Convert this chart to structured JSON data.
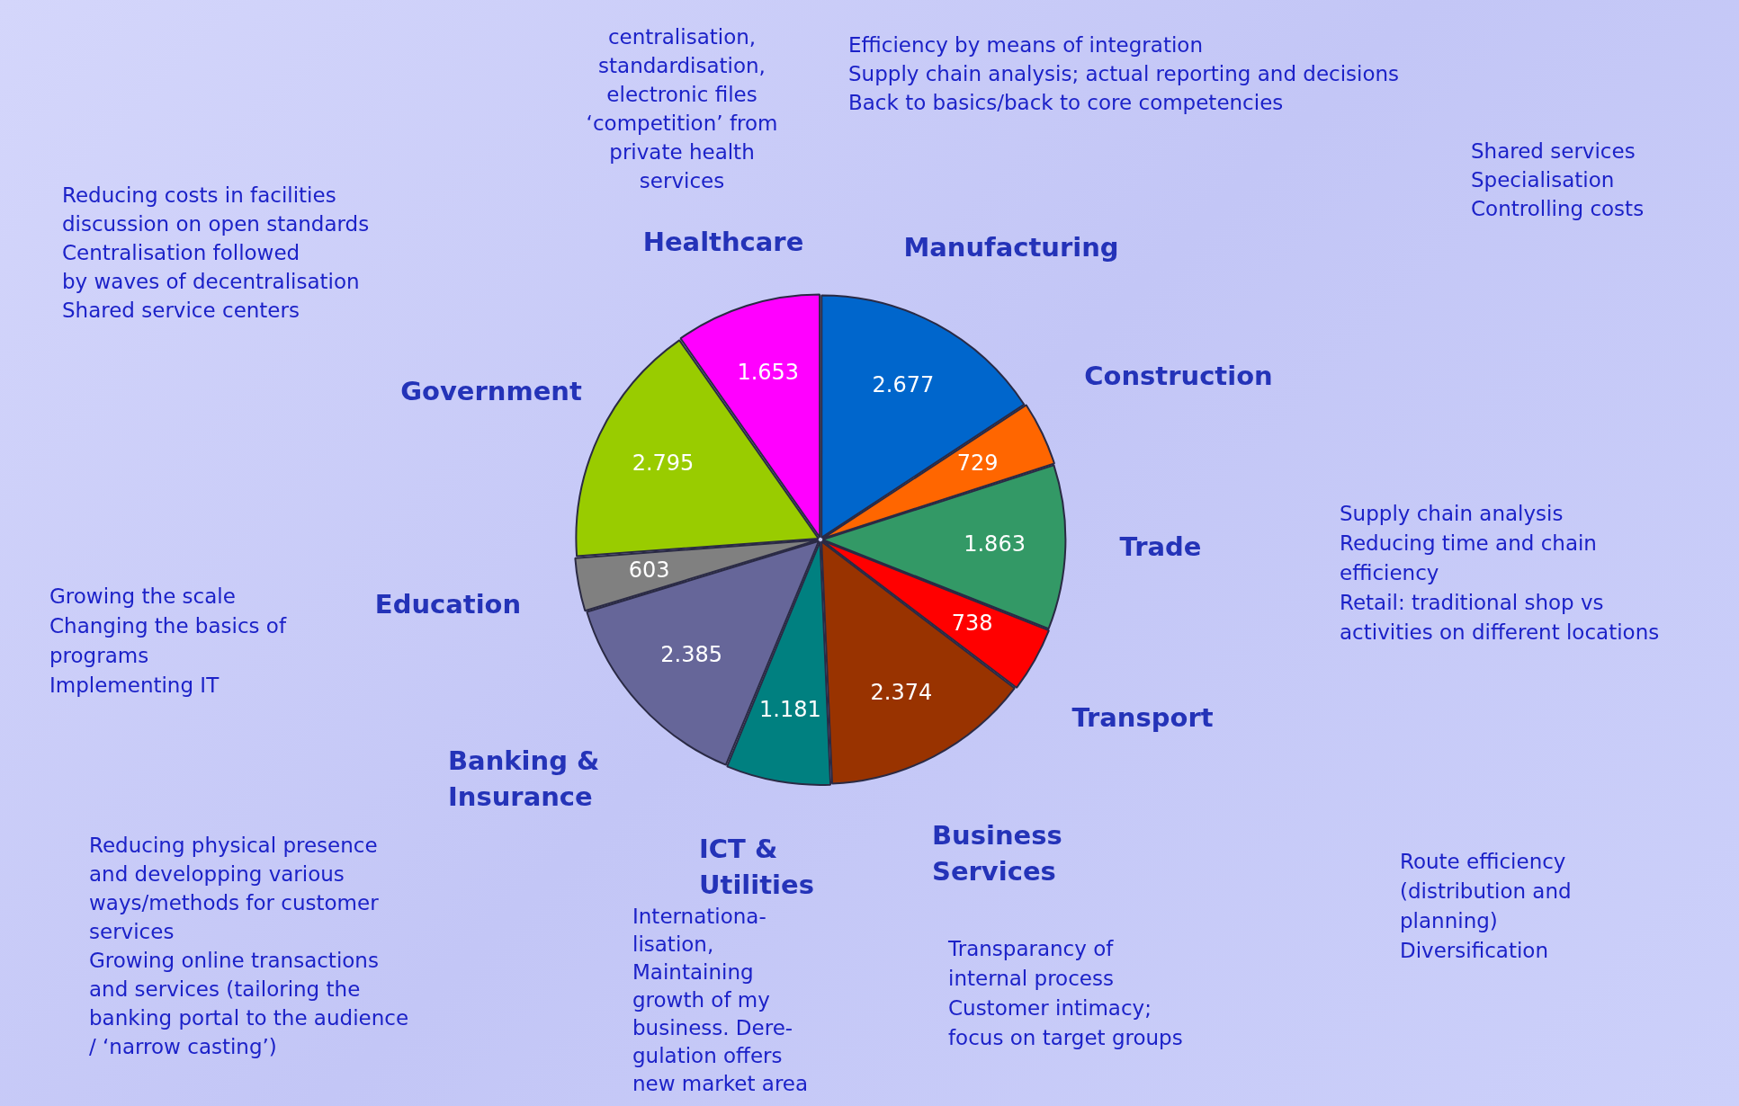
{
  "chart_data": {
    "type": "pie",
    "categories": [
      "Manufacturing",
      "Construction",
      "Trade",
      "Transport",
      "Business Services",
      "ICT & Utilities",
      "Banking & Insurance",
      "Education",
      "Government",
      "Healthcare"
    ],
    "values": [
      2677,
      729,
      1863,
      738,
      2374,
      1181,
      2385,
      603,
      2795,
      1653
    ],
    "colors": [
      "#0066cc",
      "#ff6600",
      "#339966",
      "#ff0000",
      "#993300",
      "#008080",
      "#666699",
      "#808080",
      "#99cc00",
      "#ff00ff"
    ],
    "value_labels": [
      "2.677",
      "729",
      "1.863",
      "738",
      "2.374",
      "1.181",
      "2.385",
      "603",
      "2.795",
      "1.653"
    ],
    "legend": false,
    "annotations": [
      "Efficiency by means of integration\nSupply chain analysis; actual reporting and decisions\nBack to basics/back to core competencies",
      "Shared services\nSpecialisation\nControlling costs",
      "Supply chain analysis\nReducing time and chain\nefficiency\nRetail: traditional shop vs\nactivities on different locations",
      "Route efficiency\n(distribution and\nplanning)\nDiversification",
      "Transparancy of\ninternal process\nCustomer intimacy;\nfocus on target groups",
      "Internationa-\nlisation,\nMaintaining\ngrowth of my\nbusiness. Dere-\ngulation offers\nnew market area",
      "Reducing physical presence\nand developping various\nways/methods for customer\nservices\nGrowing online transactions\nand services (tailoring the\nbanking portal to the audience\n/ ‘narrow casting’)",
      "Growing the scale\nChanging the basics of\nprograms\nImplementing IT",
      "Reducing costs in facilities\ndiscussion on open standards\nCentralisation followed\nby waves of decentralisation\nShared service centers",
      "centralisation,\nstandardisation,\nelectronic files\n‘competition’ from\nprivate health\nservices"
    ]
  }
}
